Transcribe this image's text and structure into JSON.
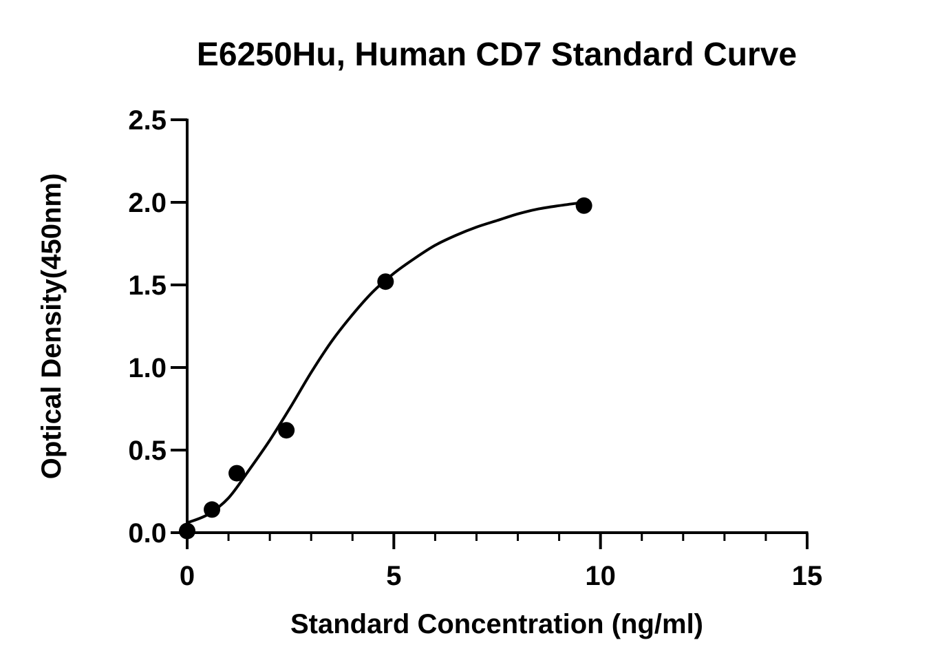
{
  "chart_data": {
    "type": "scatter",
    "title": "E6250Hu, Human CD7 Standard Curve",
    "xlabel": "Standard Concentration (ng/ml)",
    "ylabel": "Optical Density(450nm)",
    "xlim": [
      0,
      15
    ],
    "ylim": [
      0,
      2.5
    ],
    "x_ticks": [
      "0",
      "5",
      "10",
      "15"
    ],
    "y_ticks": [
      "0.0",
      "0.5",
      "1.0",
      "1.5",
      "2.0",
      "2.5"
    ],
    "x_minor_tick_step": 1,
    "grid": false,
    "legend": "none",
    "series": [
      {
        "x": [
          0,
          0.6,
          1.2,
          2.4,
          4.8,
          9.6
        ],
        "y": [
          0.01,
          0.14,
          0.36,
          0.62,
          1.52,
          1.98
        ]
      }
    ],
    "fit_curve": {
      "x": [
        0,
        0.5,
        1.0,
        1.5,
        2.0,
        2.5,
        3.0,
        3.5,
        4.0,
        4.5,
        5.0,
        5.5,
        6.0,
        6.5,
        7.0,
        7.5,
        8.0,
        8.5,
        9.0,
        9.6
      ],
      "y": [
        0.06,
        0.11,
        0.21,
        0.38,
        0.56,
        0.76,
        0.97,
        1.16,
        1.32,
        1.46,
        1.57,
        1.66,
        1.74,
        1.8,
        1.85,
        1.89,
        1.93,
        1.96,
        1.98,
        2.0
      ]
    },
    "colors": {
      "points": "#000000",
      "curve": "#000000",
      "axes": "#000000"
    }
  }
}
